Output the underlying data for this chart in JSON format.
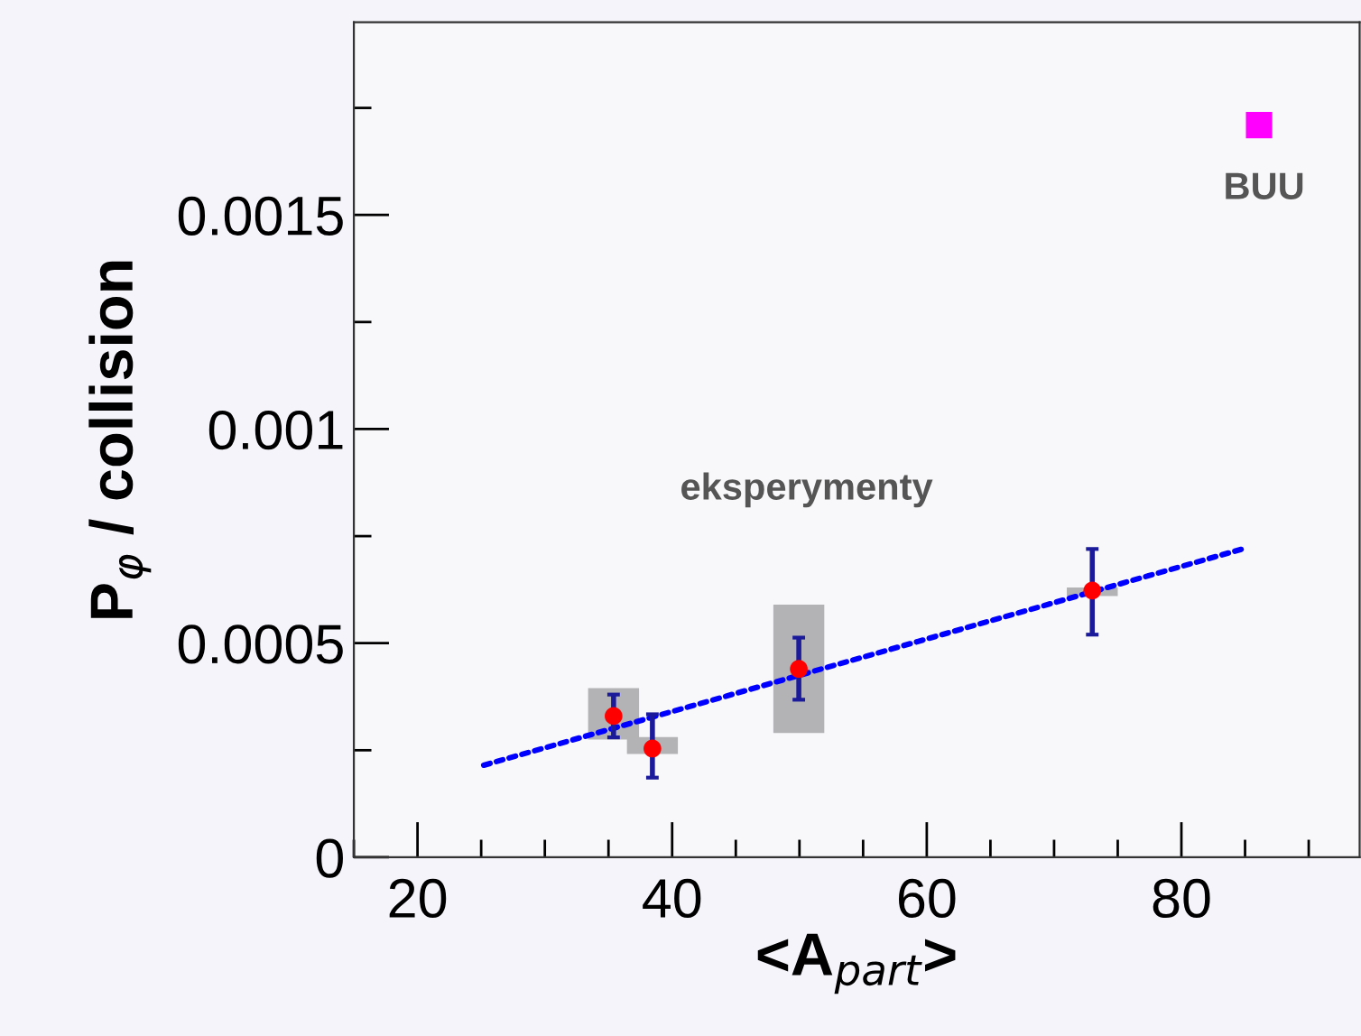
{
  "chart_data": {
    "type": "scatter",
    "xlabel": "<A$_{part}$>",
    "ylabel": "P$_{φ}$ / collision",
    "xlim": [
      15,
      94
    ],
    "xticks": [
      20,
      40,
      60,
      80
    ],
    "ylim": [
      0,
      0.00195
    ],
    "yticks": [
      0,
      0.0005,
      0.001,
      0.0015
    ],
    "grid": false,
    "legend": false,
    "series": [
      {
        "type": "bar",
        "color": "#b3b3b5",
        "x": [
          35.4,
          38.45,
          49.95,
          73.0
        ],
        "base": [
          0.000275,
          0.000241,
          0.00029,
          0.00061
        ],
        "values": [
          0.00012,
          4e-05,
          0.0003,
          2e-05
        ]
      },
      {
        "type": "line",
        "color": "#0000ff",
        "line_style": "dotted",
        "marker": "none",
        "x": [
          25.2,
          84.8
        ],
        "values": [
          0.000215,
          0.00072
        ]
      },
      {
        "color": "#ff0000",
        "marker": "circle",
        "x": [
          35.4,
          38.45,
          49.95,
          73.0
        ],
        "values": [
          0.00033,
          0.000254,
          0.00044,
          0.000623
        ],
        "errors": [
          [
            0.00028,
            0.00038
          ],
          [
            0.000186,
            0.000334
          ],
          [
            0.000368,
            0.000513
          ],
          [
            0.00052,
            0.00072
          ]
        ]
      },
      {
        "type": "scatter",
        "color": "#ff00ff",
        "marker": "square",
        "x": [
          86.1
        ],
        "values": [
          0.00171
        ]
      }
    ],
    "annotations": [
      "BUU",
      "eksperymenty"
    ]
  }
}
